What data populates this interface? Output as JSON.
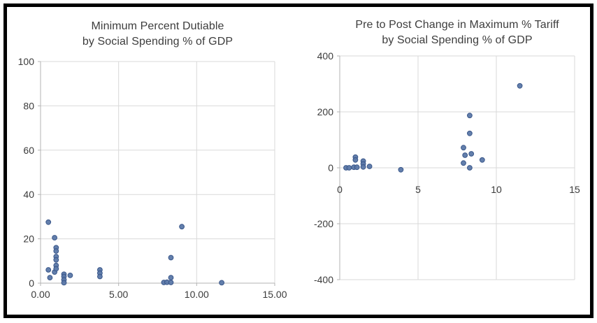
{
  "window": {
    "background_color": "#ffffff",
    "frame_border_color": "#000000"
  },
  "chart_data": [
    {
      "type": "scatter",
      "title": "Minimum Percent Dutiable by Social Spending % of GDP",
      "title_line1": "Minimum Percent Dutiable",
      "title_line2": "by Social Spending % of GDP",
      "xlabel": "",
      "ylabel": "",
      "xlim": [
        0,
        15
      ],
      "ylim": [
        0,
        100
      ],
      "xtick_values": [
        0,
        5,
        10,
        15
      ],
      "xtick_labels": [
        "0.00",
        "5.00",
        "10.00",
        "15.00"
      ],
      "ytick_values": [
        0,
        20,
        40,
        60,
        80,
        100
      ],
      "ytick_labels": [
        "0",
        "20",
        "40",
        "60",
        "80",
        "100"
      ],
      "grid": true,
      "legend": "none",
      "grid_color": "#d9d9d9",
      "axis_color": "#b3b3b3",
      "marker_color": "#5b78a8",
      "marker_edge_color": "#3a578a",
      "points": [
        [
          0.5,
          27.5
        ],
        [
          0.5,
          6
        ],
        [
          0.6,
          2.5
        ],
        [
          0.9,
          20.5
        ],
        [
          0.9,
          5
        ],
        [
          1.0,
          16
        ],
        [
          1.0,
          14.5
        ],
        [
          1.0,
          12
        ],
        [
          1.0,
          10.5
        ],
        [
          1.0,
          8
        ],
        [
          1.0,
          6.5
        ],
        [
          1.5,
          4
        ],
        [
          1.5,
          3
        ],
        [
          1.5,
          1.5
        ],
        [
          1.5,
          0.2
        ],
        [
          1.9,
          3.5
        ],
        [
          3.8,
          6
        ],
        [
          3.8,
          4.5
        ],
        [
          3.8,
          3
        ],
        [
          7.9,
          0.3
        ],
        [
          8.1,
          0.4
        ],
        [
          8.35,
          0.3
        ],
        [
          8.35,
          2.5
        ],
        [
          8.35,
          11.5
        ],
        [
          9.05,
          25.5
        ],
        [
          11.6,
          0.2
        ]
      ]
    },
    {
      "type": "scatter",
      "title": "Pre to Post Change in Maximum % Tariff by Social Spending % of GDP",
      "title_line1": "Pre to Post Change in Maximum % Tariff",
      "title_line2": "by Social Spending % of GDP",
      "xlabel": "",
      "ylabel": "",
      "xlim": [
        0,
        15
      ],
      "ylim": [
        -400,
        400
      ],
      "xtick_values": [
        0,
        5,
        10,
        15
      ],
      "xtick_labels": [
        "0",
        "5",
        "10",
        "15"
      ],
      "ytick_values": [
        -400,
        -200,
        0,
        200,
        400
      ],
      "ytick_labels": [
        "-400",
        "-200",
        "0",
        "200",
        "400"
      ],
      "grid": true,
      "legend": "none",
      "grid_color": "#d9d9d9",
      "axis_color": "#b3b3b3",
      "marker_color": "#5b78a8",
      "marker_edge_color": "#3a578a",
      "points": [
        [
          0.4,
          0
        ],
        [
          0.6,
          0
        ],
        [
          0.9,
          2
        ],
        [
          1.1,
          2
        ],
        [
          1.0,
          38
        ],
        [
          1.0,
          28
        ],
        [
          1.5,
          24
        ],
        [
          1.5,
          14
        ],
        [
          1.5,
          3
        ],
        [
          1.9,
          5
        ],
        [
          3.9,
          -7
        ],
        [
          7.9,
          72
        ],
        [
          7.9,
          17
        ],
        [
          8.0,
          45
        ],
        [
          8.3,
          187
        ],
        [
          8.3,
          123
        ],
        [
          8.3,
          0
        ],
        [
          8.4,
          50
        ],
        [
          9.1,
          28
        ],
        [
          11.5,
          293
        ]
      ]
    }
  ]
}
